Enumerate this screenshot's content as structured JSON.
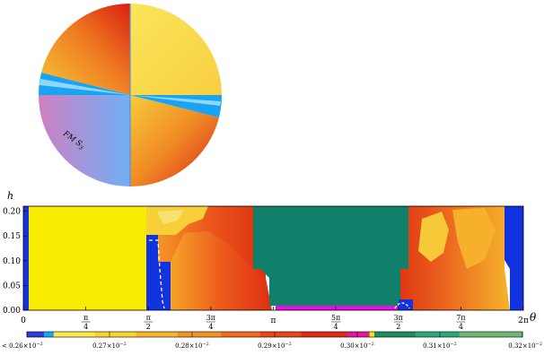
{
  "pie": {
    "region_label": "FM  S",
    "region_label_sub": "3",
    "colors": {
      "yellow": "#fbe24c",
      "orange": "#f59a26",
      "red": "#e23416",
      "blue": "#1aa3f2",
      "pale_blue": "#7ed0f6",
      "violet": "#c07ec8",
      "lavender": "#7aaaf0",
      "divider": "#5b8fd6"
    }
  },
  "chart_data": [
    {
      "type": "pie",
      "title": "",
      "slices": [
        {
          "region": "upper-right",
          "theta_start_deg": 0,
          "theta_end_deg": 90,
          "fill": "yellow"
        },
        {
          "region": "upper-left",
          "theta_start_deg": 90,
          "theta_end_deg": 166,
          "fill": "orange-red"
        },
        {
          "region": "left-blue",
          "theta_start_deg": 166,
          "theta_end_deg": 180,
          "fill": "blue"
        },
        {
          "region": "lower-left",
          "theta_start_deg": 180,
          "theta_end_deg": 270,
          "fill": "violet-lavender",
          "label": "FM S3"
        },
        {
          "region": "lower-right",
          "theta_start_deg": 270,
          "theta_end_deg": 346,
          "fill": "orange-red"
        },
        {
          "region": "right-blue",
          "theta_start_deg": 346,
          "theta_end_deg": 360,
          "fill": "blue"
        }
      ]
    },
    {
      "type": "heatmap",
      "xlabel": "θ",
      "ylabel": "h",
      "xlim": [
        0,
        6.2832
      ],
      "ylim": [
        0,
        0.21
      ],
      "x_ticks": [
        {
          "value": 0,
          "label": "0"
        },
        {
          "value": 0.7854,
          "label": "π/4"
        },
        {
          "value": 1.5708,
          "label": "π/2"
        },
        {
          "value": 2.3562,
          "label": "3π/4"
        },
        {
          "value": 3.1416,
          "label": "π"
        },
        {
          "value": 3.927,
          "label": "5π/4"
        },
        {
          "value": 4.7124,
          "label": "3π/2"
        },
        {
          "value": 5.4978,
          "label": "7π/4"
        },
        {
          "value": 6.2832,
          "label": "2π"
        }
      ],
      "y_ticks": [
        "0.00",
        "0.05",
        "0.10",
        "0.15",
        "0.20"
      ],
      "y_tick_values": [
        0,
        0.05,
        0.1,
        0.15,
        0.2
      ],
      "regions": [
        {
          "phase": "blue",
          "theta": [
            0,
            0.06
          ],
          "h": [
            0,
            0.21
          ]
        },
        {
          "phase": "yellow",
          "theta": [
            0.06,
            1.56
          ],
          "h": [
            0,
            0.21
          ]
        },
        {
          "phase": "blue",
          "theta": [
            1.56,
            1.72
          ],
          "h": [
            0,
            0.15
          ]
        },
        {
          "phase": "orange-red",
          "theta": [
            1.56,
            2.84
          ],
          "h": [
            0.15,
            0.21
          ]
        },
        {
          "phase": "orange-red",
          "theta": [
            1.72,
            3.0
          ],
          "h": [
            0,
            0.15
          ]
        },
        {
          "phase": "green",
          "theta": [
            2.84,
            4.75
          ],
          "h": [
            0.005,
            0.21
          ]
        },
        {
          "phase": "magenta",
          "theta": [
            3.1,
            4.69
          ],
          "h": [
            0,
            0.008
          ]
        },
        {
          "phase": "blue",
          "theta": [
            4.69,
            4.9
          ],
          "h": [
            0,
            0.03
          ]
        },
        {
          "phase": "orange-red",
          "theta": [
            4.73,
            6.07
          ],
          "h": [
            0,
            0.21
          ]
        },
        {
          "phase": "blue",
          "theta": [
            5.95,
            6.2832
          ],
          "h": [
            0,
            0.21
          ]
        }
      ]
    },
    {
      "type": "colorbar",
      "tick_labels": [
        {
          "mantissa": "< 0.26",
          "power": "−2"
        },
        {
          "mantissa": "0.27",
          "power": "−2"
        },
        {
          "mantissa": "0.28",
          "power": "−2"
        },
        {
          "mantissa": "0.29",
          "power": "−2"
        },
        {
          "mantissa": "0.30",
          "power": "−2"
        },
        {
          "mantissa": "0.31",
          "power": "−2"
        },
        {
          "mantissa": "0.32",
          "power": "−2"
        }
      ],
      "segments": [
        {
          "color": "#2a3fd6"
        },
        {
          "color": "#16a6ef"
        },
        {
          "color": "#f9e94a"
        },
        {
          "color": "#f7d634"
        },
        {
          "color": "#f5b52c"
        },
        {
          "color": "#f39225"
        },
        {
          "color": "#ef6d1f"
        },
        {
          "color": "#e8451a"
        },
        {
          "color": "#de2a14"
        },
        {
          "color": "#e0189a"
        },
        {
          "color": "#f5e600"
        },
        {
          "color": "#1f8c60"
        },
        {
          "color": "#2aa878"
        },
        {
          "color": "#6cb870"
        }
      ]
    }
  ]
}
